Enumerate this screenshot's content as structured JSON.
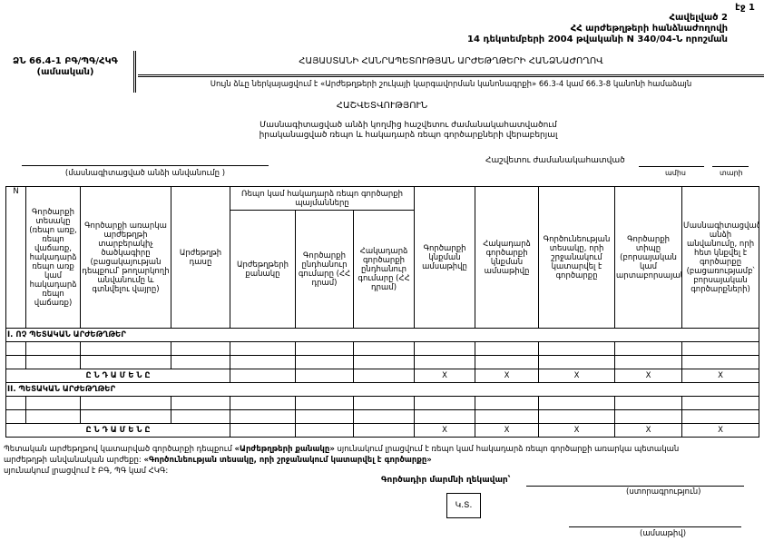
{
  "page_number": "էջ 1",
  "annex": [
    "Հավելված 2",
    "ՀՀ արժեթղթերի հանձնաժողովի",
    "14 դեկտեմբերի 2004 թվականի N 340/04-Ն որոշման"
  ],
  "form_code": "ՁՆ 66.4-1 ԲԳ/ՊԳ/ՀԿԳ",
  "form_period": "(ամսական)",
  "authority": "ՀԱՅԱՍՏԱՆԻ ՀԱՆՐԱՊԵՏՈՒԹՅԱՆ ԱՐԺԵԹՂԹԵՐԻ ՀԱՆՁՆԱԺՈՂՈՎ",
  "basis": "Սույն ձևը ներկայացվում է «Արժեթղթերի շուկայի կարգավորման կանոնագրքի» 66.3-4 կամ 66.3-8 կանոնի համաձայն",
  "title": "ՀԱՇՎԵՏՎՈՒԹՅՈՒՆ",
  "subtitle": [
    "Մասնագիտացված անձի կողմից հաշվետու ժամանակահատվածում",
    "իրականացված ռեպո և հակադարձ ռեպո գործարքների վերաբերյալ"
  ],
  "entity_caption": "(մասնագիտացված անձի անվանումը )",
  "period_label": "Հաշվետու ժամանակահատված",
  "month_caption": "ամիս",
  "year_caption": "տարի",
  "table": {
    "headers": [
      "N",
      "Գործարքի տեսակը (ռեպո առք, ռեպո վաճառք, հակադարձ ռեպո առք կամ հակադարձ ռեպո վաճառք)",
      "Գործարքի առարկա արժեթղթի տարբերակիչ ծածկագիրը (բացակայության դեպքում՝ թողարկողի անվանումը և գտնվելու վայրը)",
      "Արժեթղթի դասը",
      "Ռեպո կամ հակադարձ ռեպո գործարքի պայմանները",
      "Արժեթղթերի քանակը",
      "Գործարքի ընդհանուր գումարը (ՀՀ դրամ)",
      "Հակադարձ գործարքի ընդհանուր գումարը (ՀՀ դրամ)",
      "Գործարքի կնքման ամսաթիվը",
      "Հակադարձ գործարքի կնքման ամսաթիվը",
      "Գործունեության տեսակը, որի շրջանակում կատարվել է գործարքը",
      "Գործարքի տիպը (բորսայական կամ արտաբորսայական)",
      "Մասնագիտացված անձի անվանումը, որի հետ կնքվել է գործարքը (բացառությամբ՝ բորսայական գործարքների)"
    ],
    "section1": "I. ՈՉ ՊԵՏԱԿԱՆ ԱՐԺԵԹՂԹԵՐ",
    "section2": "II. ՊԵՏԱԿԱՆ ԱՐԺԵԹՂԹԵՐ",
    "total_label": "Ը Ն Դ Ա Մ Ե Ն Ը",
    "x_mark": "X"
  },
  "note": {
    "p1": "Պետական արժեթղթով կատարված գործարքի դեպքում",
    "b1": "«Արժեթղթերի քանակը»",
    "p2": "սյունակում լրացվում է ռեպո կամ հակադարձ ռեպո գործարքի առարկա պետական արժեթղթի անվանական արժեքը:",
    "b2": "«Գործունեության տեսակը, որի շրջանակում կատարվել է գործարքը»",
    "p3": "սյունակում լրացվում է ԲԳ, ՊԳ կամ ՀԿԳ:"
  },
  "signature": {
    "label": "Գործադիր մարմնի ղեկավար՝",
    "caption": "(ստորագրություն)",
    "stamp": "Կ.Տ.",
    "date_caption": "(ամսաթիվ)"
  }
}
